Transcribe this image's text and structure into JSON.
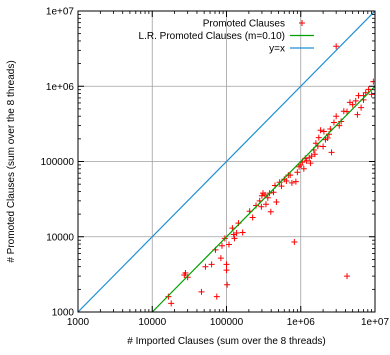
{
  "chart_data": {
    "type": "scatter",
    "xscale": "log",
    "yscale": "log",
    "xlim": [
      1000,
      10000000
    ],
    "ylim": [
      1000,
      10000000
    ],
    "grid": true,
    "legend_position": "top-left",
    "xlabel": "# Imported Clauses (sum over the 8 threads)",
    "ylabel": "# Promoted Clauses (sum over the 8 threads)",
    "xticks": [
      1000,
      10000,
      100000,
      1000000,
      10000000
    ],
    "yticks": [
      1000,
      10000,
      100000,
      1000000,
      10000000
    ],
    "xtick_labels": [
      "1000",
      "10000",
      "100000",
      "1e+06",
      "1e+07"
    ],
    "ytick_labels": [
      "1000",
      "10000",
      "100000",
      "1e+06",
      "1e+07"
    ],
    "series": [
      {
        "name": "Promoted Clauses",
        "kind": "points",
        "color": "#ff0000",
        "marker": "plus",
        "points": [
          [
            16500,
            1600
          ],
          [
            18000,
            1300
          ],
          [
            27000,
            3100
          ],
          [
            28000,
            3300
          ],
          [
            30000,
            2900
          ],
          [
            46000,
            1850
          ],
          [
            52000,
            4000
          ],
          [
            63000,
            4300
          ],
          [
            71000,
            6700
          ],
          [
            74000,
            1600
          ],
          [
            84000,
            5200
          ],
          [
            87000,
            7600
          ],
          [
            95000,
            9500
          ],
          [
            100000,
            4300
          ],
          [
            100000,
            3600
          ],
          [
            102000,
            2300
          ],
          [
            108000,
            7900
          ],
          [
            120000,
            13000
          ],
          [
            125000,
            10700
          ],
          [
            128000,
            9500
          ],
          [
            137000,
            11200
          ],
          [
            145000,
            15200
          ],
          [
            165000,
            11400
          ],
          [
            205000,
            21800
          ],
          [
            225000,
            18000
          ],
          [
            250000,
            26000
          ],
          [
            280000,
            30000
          ],
          [
            295000,
            25000
          ],
          [
            300000,
            35000
          ],
          [
            310000,
            38000
          ],
          [
            330000,
            36000
          ],
          [
            340000,
            27000
          ],
          [
            360000,
            33000
          ],
          [
            380000,
            38000
          ],
          [
            395000,
            21500
          ],
          [
            430000,
            39000
          ],
          [
            450000,
            48000
          ],
          [
            470000,
            29000
          ],
          [
            520000,
            53000
          ],
          [
            550000,
            47000
          ],
          [
            600000,
            58000
          ],
          [
            640000,
            55000
          ],
          [
            680000,
            66000
          ],
          [
            720000,
            66000
          ],
          [
            760000,
            52000
          ],
          [
            820000,
            8500
          ],
          [
            860000,
            54000
          ],
          [
            900000,
            72000
          ],
          [
            950000,
            85000
          ],
          [
            1000000,
            90000
          ],
          [
            1050000,
            98000
          ],
          [
            1100000,
            80000
          ],
          [
            1150000,
            110000
          ],
          [
            1200000,
            102000
          ],
          [
            1300000,
            112000
          ],
          [
            1350000,
            95000
          ],
          [
            1400000,
            118000
          ],
          [
            1500000,
            142000
          ],
          [
            1550000,
            125000
          ],
          [
            1600000,
            175000
          ],
          [
            1700000,
            160000
          ],
          [
            1750000,
            208000
          ],
          [
            1850000,
            260000
          ],
          [
            2000000,
            158000
          ],
          [
            2050000,
            250000
          ],
          [
            2150000,
            195000
          ],
          [
            2300000,
            205000
          ],
          [
            2400000,
            230000
          ],
          [
            2500000,
            270000
          ],
          [
            2600000,
            132000
          ],
          [
            2800000,
            330000
          ],
          [
            3000000,
            400000
          ],
          [
            3300000,
            300000
          ],
          [
            3500000,
            340000
          ],
          [
            3800000,
            465000
          ],
          [
            4200000,
            460000
          ],
          [
            4600000,
            610000
          ],
          [
            5000000,
            570000
          ],
          [
            5500000,
            640000
          ],
          [
            6000000,
            750000
          ],
          [
            6500000,
            520000
          ],
          [
            7000000,
            660000
          ],
          [
            7500000,
            820000
          ],
          [
            8200000,
            910000
          ],
          [
            9000000,
            780000
          ],
          [
            9500000,
            1150000
          ],
          [
            5800000,
            420000
          ],
          [
            4200000,
            3000
          ],
          [
            7000000,
            750000
          ],
          [
            3000000,
            3400000
          ]
        ]
      },
      {
        "name": "L.R. Promoted Clauses (m=0.10)",
        "kind": "line",
        "color": "#00a000",
        "x": [
          10000,
          10000000
        ],
        "y": [
          1000,
          1000000
        ]
      },
      {
        "name": "y=x",
        "kind": "line",
        "color": "#1f8fd6",
        "x": [
          1000,
          10000000
        ],
        "y": [
          1000,
          10000000
        ]
      }
    ]
  }
}
